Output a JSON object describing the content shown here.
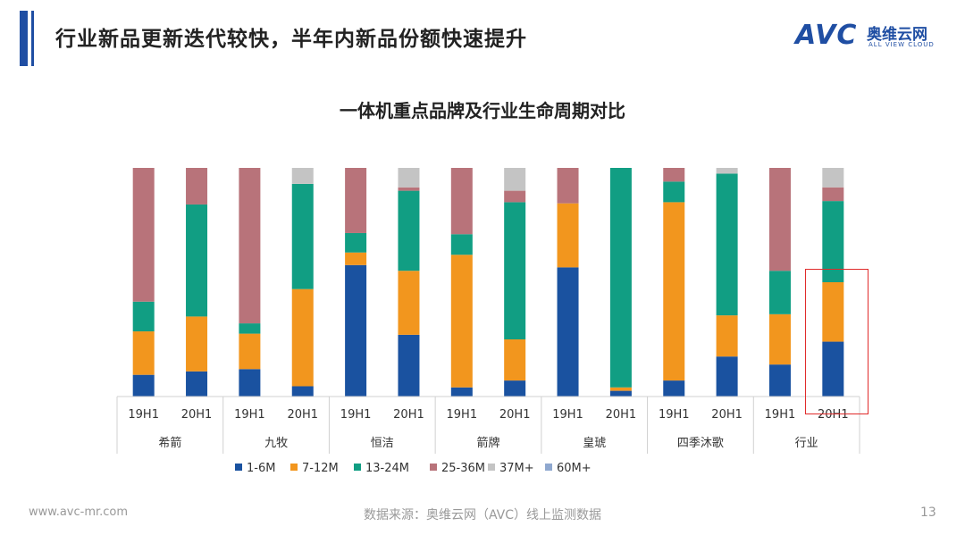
{
  "header": {
    "title": "行业新品更新迭代较快，半年内新品份额快速提升",
    "logo_avc": "AVC",
    "logo_cn": "奥维云网",
    "logo_en": "ALL VIEW CLOUD"
  },
  "footer": {
    "website": "www.avc-mr.com",
    "source": "数据来源：奥维云网（AVC）线上监测数据",
    "page_number": "13"
  },
  "colors": {
    "1-6M": "#1a52a0",
    "7-12M": "#f2961e",
    "13-24M": "#119e83",
    "25-36M": "#b8737a",
    "37M+": "#c4c4c4",
    "60M+": "#8fa8cf"
  },
  "chart_data": {
    "type": "bar",
    "stacked": true,
    "percent": true,
    "title": "一体机重点品牌及行业生命周期对比",
    "groups": [
      "希箭",
      "九牧",
      "恒洁",
      "箭牌",
      "皇琥",
      "四季沐歌",
      "行业"
    ],
    "categories": [
      "19H1",
      "20H1",
      "19H1",
      "20H1",
      "19H1",
      "20H1",
      "19H1",
      "20H1",
      "19H1",
      "20H1",
      "19H1",
      "20H1",
      "19H1",
      "20H1"
    ],
    "ylim": [
      0,
      100
    ],
    "legend_position": "bottom",
    "series": [
      {
        "name": "1-6M",
        "values": [
          9.5,
          11,
          12,
          4.5,
          57.5,
          27,
          4,
          7,
          56.5,
          2.5,
          7,
          17.5,
          14,
          24
        ]
      },
      {
        "name": "7-12M",
        "values": [
          19,
          24,
          15.5,
          42.5,
          5.5,
          28,
          58,
          18,
          28,
          1.5,
          78,
          18,
          22,
          26
        ]
      },
      {
        "name": "13-24M",
        "values": [
          13,
          49,
          4.5,
          46,
          8.5,
          35,
          9,
          60,
          0,
          96,
          9,
          62,
          19,
          35.5
        ]
      },
      {
        "name": "25-36M",
        "values": [
          58.5,
          16,
          68,
          0,
          28.5,
          1.5,
          29,
          5,
          15.5,
          0,
          6,
          0,
          45,
          6
        ]
      },
      {
        "name": "37M+",
        "values": [
          0,
          0,
          0,
          7,
          0,
          8.5,
          0,
          10,
          0,
          0,
          0,
          2.5,
          0,
          8.5
        ]
      },
      {
        "name": "60M+",
        "values": [
          0,
          0,
          0,
          0,
          0,
          0,
          0,
          0,
          0,
          0,
          0,
          0,
          0,
          0
        ]
      }
    ]
  }
}
